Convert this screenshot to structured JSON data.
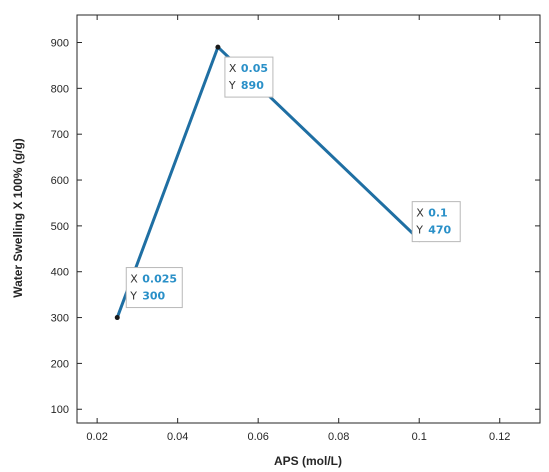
{
  "chart_data": {
    "type": "line",
    "xlabel": "APS (mol/L)",
    "ylabel": "Water Swelling X 100% (g/g)",
    "xlim": [
      0.015,
      0.13
    ],
    "ylim": [
      70,
      960
    ],
    "xticks": [
      0.02,
      0.04,
      0.06,
      0.08,
      0.1,
      0.12
    ],
    "xtick_labels": [
      "0.02",
      "0.04",
      "0.06",
      "0.08",
      "0.1",
      "0.12"
    ],
    "yticks": [
      100,
      200,
      300,
      400,
      500,
      600,
      700,
      800,
      900
    ],
    "ytick_labels": [
      "100",
      "200",
      "300",
      "400",
      "500",
      "600",
      "700",
      "800",
      "900"
    ],
    "grid": false,
    "series": [
      {
        "x": [
          0.025,
          0.05,
          0.1
        ],
        "y": [
          300,
          890,
          470
        ],
        "color": "#1f6fa3"
      }
    ],
    "datatips": [
      {
        "x_label": "X",
        "x_value": "0.025",
        "y_label": "Y",
        "y_value": "300"
      },
      {
        "x_label": "X",
        "x_value": "0.05",
        "y_label": "Y",
        "y_value": "890"
      },
      {
        "x_label": "X",
        "x_value": "0.1",
        "y_label": "Y",
        "y_value": "470"
      }
    ],
    "datatip_value_color": "#2a90c8"
  }
}
